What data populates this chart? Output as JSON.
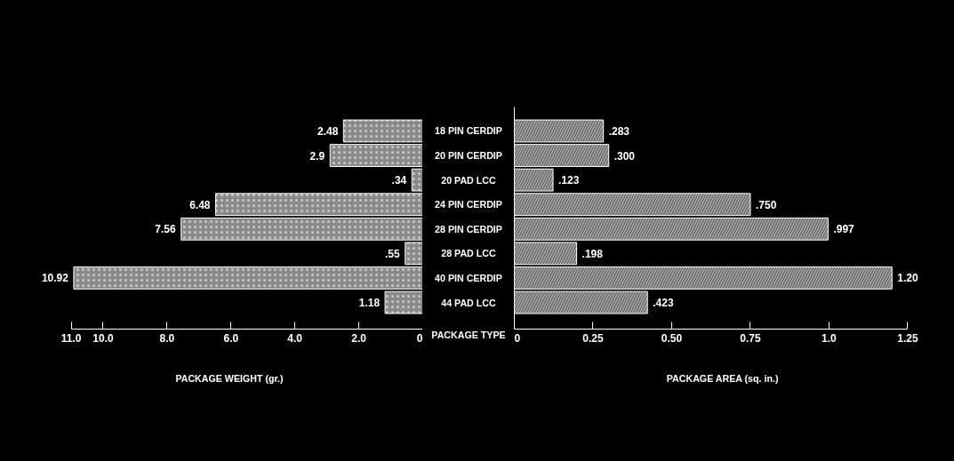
{
  "chart_data": [
    {
      "type": "bar",
      "orientation": "horizontal",
      "categories": [
        "18 PIN CERDIP",
        "20 PIN CERDIP",
        "20 PAD LCC",
        "24 PIN CERDIP",
        "28 PIN CERDIP",
        "28 PAD LCC",
        "40 PIN CERDIP",
        "44 PAD LCC"
      ],
      "values": [
        2.48,
        2.9,
        0.34,
        6.48,
        7.56,
        0.55,
        10.92,
        1.18
      ],
      "value_labels": [
        "2.48",
        "2.9",
        ".34",
        "6.48",
        "7.56",
        ".55",
        "10.92",
        "1.18"
      ],
      "color": "#8a8a8a",
      "xlim": [
        11.0,
        0
      ],
      "xticks": [
        {
          "value": 11,
          "label": "11.0"
        },
        {
          "value": 10,
          "label": "10.0"
        },
        {
          "value": 8,
          "label": "8.0"
        },
        {
          "value": 6,
          "label": "6.0"
        },
        {
          "value": 4,
          "label": "4.0"
        },
        {
          "value": 2,
          "label": "2.0"
        },
        0
      ],
      "xlabel": "PACKAGE WEIGHT (gr.)",
      "ylabel": "PACKAGE TYPE"
    },
    {
      "type": "bar",
      "orientation": "horizontal",
      "values": [
        0.283,
        0.3,
        0.123,
        0.75,
        0.997,
        0.198,
        1.2,
        0.423
      ],
      "value_labels": [
        ".283",
        ".300",
        ".123",
        ".750",
        ".997",
        ".198",
        "1.20",
        ".423"
      ],
      "color": "#6e6e6e",
      "xlim": [
        0,
        1.25
      ],
      "xticks": [
        0,
        {
          "value": 0.25,
          "label": "0.25"
        },
        {
          "value": 0.5,
          "label": "0.50"
        },
        {
          "value": 0.75,
          "label": "0.75"
        },
        {
          "value": 1.0,
          "label": "1.0"
        },
        {
          "value": 1.25,
          "label": "1.25"
        }
      ],
      "xlabel": "PACKAGE AREA (sq. in.)"
    }
  ]
}
